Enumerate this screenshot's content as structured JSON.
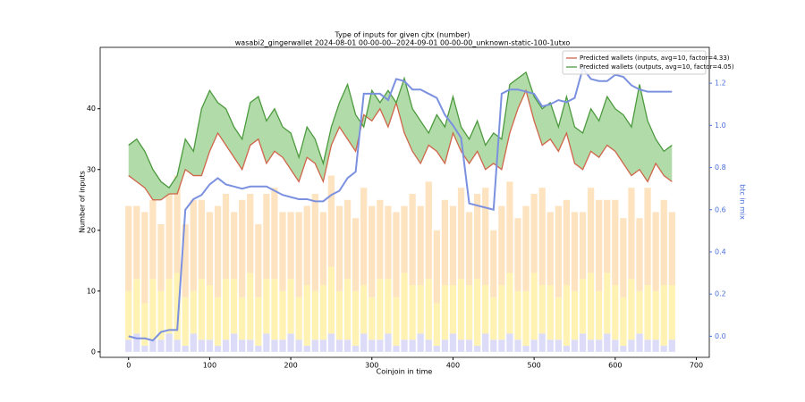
{
  "chart_data": {
    "type": "line",
    "title": "Type of inputs for given cjtx (number)",
    "subtitle": "wasabi2_gingerwallet 2024-08-01 00-00-00--2024-09-01 00-00-00_unknown-static-100-1utxo",
    "x_label": "Coinjoin in time",
    "y_label": "Number of inputs",
    "y2_label": "btc in mix",
    "x": [
      0,
      10,
      20,
      30,
      40,
      50,
      60,
      70,
      80,
      90,
      100,
      110,
      120,
      130,
      140,
      150,
      160,
      170,
      180,
      190,
      200,
      210,
      220,
      230,
      240,
      250,
      260,
      270,
      280,
      290,
      300,
      310,
      320,
      330,
      340,
      350,
      360,
      370,
      380,
      390,
      400,
      410,
      420,
      430,
      440,
      450,
      460,
      470,
      480,
      490,
      500,
      510,
      520,
      530,
      540,
      550,
      560,
      570,
      580,
      590,
      600,
      610,
      620,
      630,
      640,
      650,
      660,
      670
    ],
    "xlim": [
      -35,
      716
    ],
    "xticks": [
      0,
      100,
      200,
      300,
      400,
      500,
      600,
      700
    ],
    "ylim": [
      -0.9,
      50.1
    ],
    "yticks": [
      0,
      10,
      20,
      30,
      40
    ],
    "y2lim": [
      -0.1,
      1.37
    ],
    "y2ticks": [
      {
        "value": 0,
        "label": "0.0"
      },
      0.2,
      0.4,
      0.6,
      0.8,
      {
        "value": 1,
        "label": "1.0"
      },
      1.2
    ],
    "legend": "upper right",
    "fill_between": [
      "series.0",
      "series.1"
    ],
    "fill_color": "#a9d7a0",
    "series": [
      {
        "name": "Predicted wallets (inputs, avg=10, factor=4.33)",
        "type": "line",
        "color": "#d0664a",
        "values": [
          29,
          28,
          27,
          25,
          25,
          26,
          26,
          30,
          29,
          29,
          33,
          36,
          34,
          32,
          30,
          34,
          35,
          31,
          33,
          32,
          30,
          28,
          32,
          31,
          28,
          34,
          37,
          35,
          33,
          39,
          38,
          40,
          37,
          41,
          36,
          33,
          31,
          34,
          33,
          31,
          36,
          33,
          31,
          33,
          30,
          31,
          30,
          36,
          40,
          43,
          38,
          34,
          35,
          33,
          36,
          31,
          30,
          33,
          32,
          34,
          33,
          31,
          29,
          30,
          28,
          31,
          29,
          28
        ]
      },
      {
        "name": "Predicted wallets (outputs, avg=10, factor=4.05)",
        "type": "line",
        "color": "#4c9a3e",
        "values": [
          34,
          35,
          33,
          30,
          28,
          27,
          29,
          35,
          33,
          40,
          43,
          41,
          40,
          37,
          35,
          41,
          42,
          38,
          40,
          37,
          36,
          32,
          37,
          35,
          31,
          37,
          41,
          44,
          39,
          37,
          43,
          41,
          43,
          41,
          45,
          40,
          38,
          36,
          39,
          37,
          42,
          37,
          35,
          38,
          34,
          36,
          35,
          44,
          45,
          46,
          42,
          40,
          41,
          37,
          42,
          37,
          36,
          40,
          38,
          42,
          40,
          39,
          37,
          44,
          38,
          35,
          33,
          34
        ]
      },
      {
        "type": "line",
        "axis": "y2",
        "color": "#7b91e0",
        "values": [
          0.0,
          -0.01,
          -0.01,
          -0.02,
          0.02,
          0.03,
          0.03,
          0.6,
          0.65,
          0.67,
          0.72,
          0.75,
          0.72,
          0.71,
          0.7,
          0.71,
          0.71,
          0.71,
          0.69,
          0.67,
          0.66,
          0.65,
          0.65,
          0.64,
          0.64,
          0.67,
          0.69,
          0.75,
          0.78,
          1.15,
          1.15,
          1.15,
          1.12,
          1.22,
          1.21,
          1.17,
          1.17,
          1.15,
          1.13,
          1.05,
          1.0,
          0.94,
          0.63,
          0.62,
          0.61,
          0.6,
          1.15,
          1.17,
          1.17,
          1.16,
          1.15,
          1.09,
          1.1,
          1.12,
          1.11,
          1.13,
          1.27,
          1.22,
          1.21,
          1.21,
          1.24,
          1.23,
          1.19,
          1.17,
          1.16,
          1.16,
          1.16,
          1.16
        ]
      },
      {
        "type": "bar",
        "color": "#dcdcf8",
        "values": [
          2,
          3,
          1,
          2,
          2,
          3,
          2,
          1,
          3,
          2,
          2,
          1,
          2,
          3,
          2,
          2,
          1,
          3,
          2,
          2,
          3,
          2,
          1,
          2,
          2,
          3,
          2,
          2,
          1,
          3,
          2,
          2,
          3,
          1,
          2,
          2,
          3,
          2,
          1,
          2,
          3,
          2,
          2,
          1,
          3,
          2,
          2,
          3,
          2,
          1,
          2,
          3,
          2,
          2,
          1,
          2,
          3,
          2,
          2,
          3,
          2,
          1,
          2,
          3,
          2,
          2,
          1,
          2
        ]
      },
      {
        "type": "bar",
        "color": "#fff2b3",
        "values": [
          8,
          9,
          7,
          10,
          8,
          9,
          11,
          8,
          7,
          10,
          9,
          8,
          10,
          9,
          7,
          11,
          8,
          9,
          10,
          8,
          9,
          7,
          10,
          8,
          9,
          11,
          8,
          10,
          9,
          8,
          7,
          10,
          9,
          8,
          11,
          9,
          8,
          10,
          7,
          9,
          8,
          10,
          9,
          11,
          8,
          7,
          9,
          10,
          8,
          9,
          11,
          8,
          9,
          7,
          10,
          8,
          9,
          11,
          8,
          10,
          9,
          8,
          10,
          7,
          9,
          8,
          10,
          9
        ]
      },
      {
        "type": "bar",
        "color": "#fde3bf",
        "values": [
          14,
          12,
          15,
          13,
          11,
          14,
          16,
          12,
          15,
          13,
          12,
          15,
          14,
          11,
          16,
          13,
          12,
          14,
          15,
          13,
          11,
          14,
          13,
          16,
          12,
          15,
          14,
          13,
          12,
          16,
          15,
          13,
          12,
          14,
          11,
          15,
          13,
          16,
          12,
          14,
          13,
          15,
          12,
          14,
          16,
          11,
          13,
          15,
          12,
          14,
          13,
          16,
          12,
          15,
          14,
          13,
          11,
          14,
          15,
          12,
          14,
          13,
          15,
          12,
          16,
          13,
          14,
          12
        ]
      }
    ]
  }
}
